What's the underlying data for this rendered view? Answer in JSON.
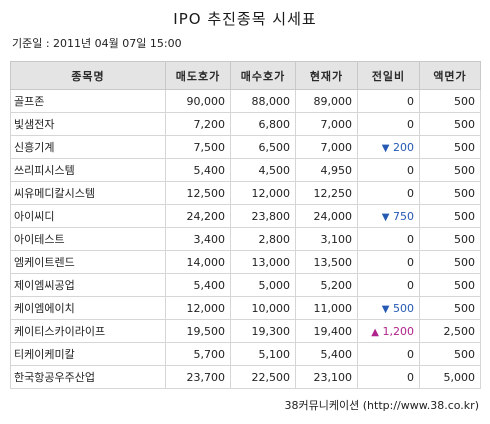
{
  "title": "IPO 추진종목 시세표",
  "base_date": "기준일 : 2011년 04월 07일 15:00",
  "columns": [
    "종목명",
    "매도호가",
    "매수호가",
    "현재가",
    "전일비",
    "액면가"
  ],
  "rows": [
    {
      "name": "골프존",
      "ask": "90,000",
      "bid": "88,000",
      "price": "89,000",
      "change": "0",
      "dir": "",
      "par": "500"
    },
    {
      "name": "빛샘전자",
      "ask": "7,200",
      "bid": "6,800",
      "price": "7,000",
      "change": "0",
      "dir": "",
      "par": "500"
    },
    {
      "name": "신흥기계",
      "ask": "7,500",
      "bid": "6,500",
      "price": "7,000",
      "change": "200",
      "dir": "down",
      "par": "500"
    },
    {
      "name": "쓰리피시스템",
      "ask": "5,400",
      "bid": "4,500",
      "price": "4,950",
      "change": "0",
      "dir": "",
      "par": "500"
    },
    {
      "name": "씨유메디칼시스템",
      "ask": "12,500",
      "bid": "12,000",
      "price": "12,250",
      "change": "0",
      "dir": "",
      "par": "500"
    },
    {
      "name": "아이씨디",
      "ask": "24,200",
      "bid": "23,800",
      "price": "24,000",
      "change": "750",
      "dir": "down",
      "par": "500"
    },
    {
      "name": "아이테스트",
      "ask": "3,400",
      "bid": "2,800",
      "price": "3,100",
      "change": "0",
      "dir": "",
      "par": "500"
    },
    {
      "name": "엠케이트렌드",
      "ask": "14,000",
      "bid": "13,000",
      "price": "13,500",
      "change": "0",
      "dir": "",
      "par": "500"
    },
    {
      "name": "제이엠씨공업",
      "ask": "5,400",
      "bid": "5,000",
      "price": "5,200",
      "change": "0",
      "dir": "",
      "par": "500"
    },
    {
      "name": "케이엠에이치",
      "ask": "12,000",
      "bid": "10,000",
      "price": "11,000",
      "change": "500",
      "dir": "down",
      "par": "500"
    },
    {
      "name": "케이티스카이라이프",
      "ask": "19,500",
      "bid": "19,300",
      "price": "19,400",
      "change": "1,200",
      "dir": "up",
      "par": "2,500"
    },
    {
      "name": "티케이케미칼",
      "ask": "5,700",
      "bid": "5,100",
      "price": "5,400",
      "change": "0",
      "dir": "",
      "par": "500"
    },
    {
      "name": "한국항공우주산업",
      "ask": "23,700",
      "bid": "22,500",
      "price": "23,100",
      "change": "0",
      "dir": "",
      "par": "5,000"
    }
  ],
  "icons": {
    "down": "▼",
    "up": "▲"
  },
  "colors": {
    "header_bg": "#e4e4e4",
    "down": "#2659b3",
    "up": "#b0238c",
    "border": "#d6d6d6"
  },
  "source": "38커뮤니케이션 (http://www.38.co.kr)"
}
